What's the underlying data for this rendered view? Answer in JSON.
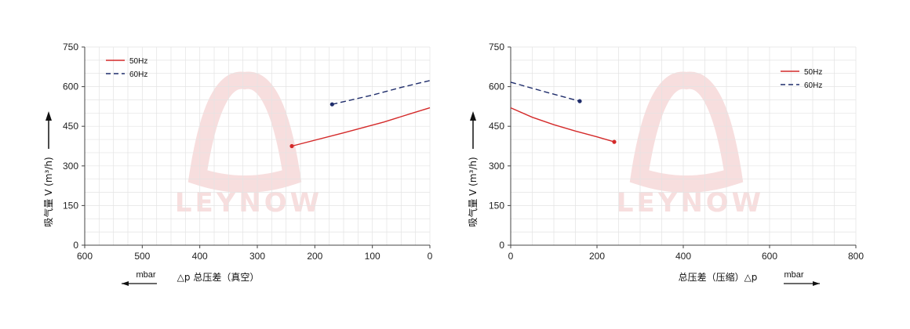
{
  "colors": {
    "s50": "#d42a2a",
    "s60": "#1f2d6b",
    "grid": "#e3e3e3",
    "axis": "#444444",
    "watermark": "#f7dede"
  },
  "watermark": {
    "brand": "LEYNOW"
  },
  "chart_data": [
    {
      "type": "line",
      "xlabel": "△p 总压差（真空）",
      "xunit": "mbar",
      "ylabel": "吸气量 V (m³/h)",
      "xlim": [
        600,
        0
      ],
      "ylim": [
        0,
        750
      ],
      "x_ticks": [
        600,
        500,
        400,
        300,
        200,
        100,
        0
      ],
      "y_ticks": [
        0,
        150,
        300,
        450,
        600,
        750
      ],
      "grid": true,
      "legend": "top-left",
      "series": [
        {
          "name": "50Hz",
          "style": "solid",
          "x": [
            240,
            150,
            80,
            30,
            0
          ],
          "y": [
            375,
            425,
            466,
            500,
            520
          ]
        },
        {
          "name": "60Hz",
          "style": "dashed",
          "x": [
            170,
            100,
            50,
            0
          ],
          "y": [
            533,
            568,
            597,
            623
          ]
        }
      ]
    },
    {
      "type": "line",
      "xlabel": "总压差（压缩）△p",
      "xunit": "mbar",
      "ylabel": "吸气量 V (m³/h)",
      "xlim": [
        0,
        800
      ],
      "ylim": [
        0,
        750
      ],
      "x_ticks": [
        0,
        200,
        400,
        600,
        800
      ],
      "y_ticks": [
        0,
        150,
        300,
        450,
        600,
        750
      ],
      "grid": true,
      "legend": "top-right",
      "series": [
        {
          "name": "50Hz",
          "style": "solid",
          "x": [
            0,
            50,
            100,
            150,
            200,
            240
          ],
          "y": [
            520,
            484,
            456,
            432,
            410,
            391
          ]
        },
        {
          "name": "60Hz",
          "style": "dashed",
          "x": [
            0,
            80,
            160
          ],
          "y": [
            617,
            580,
            545
          ]
        }
      ]
    }
  ]
}
